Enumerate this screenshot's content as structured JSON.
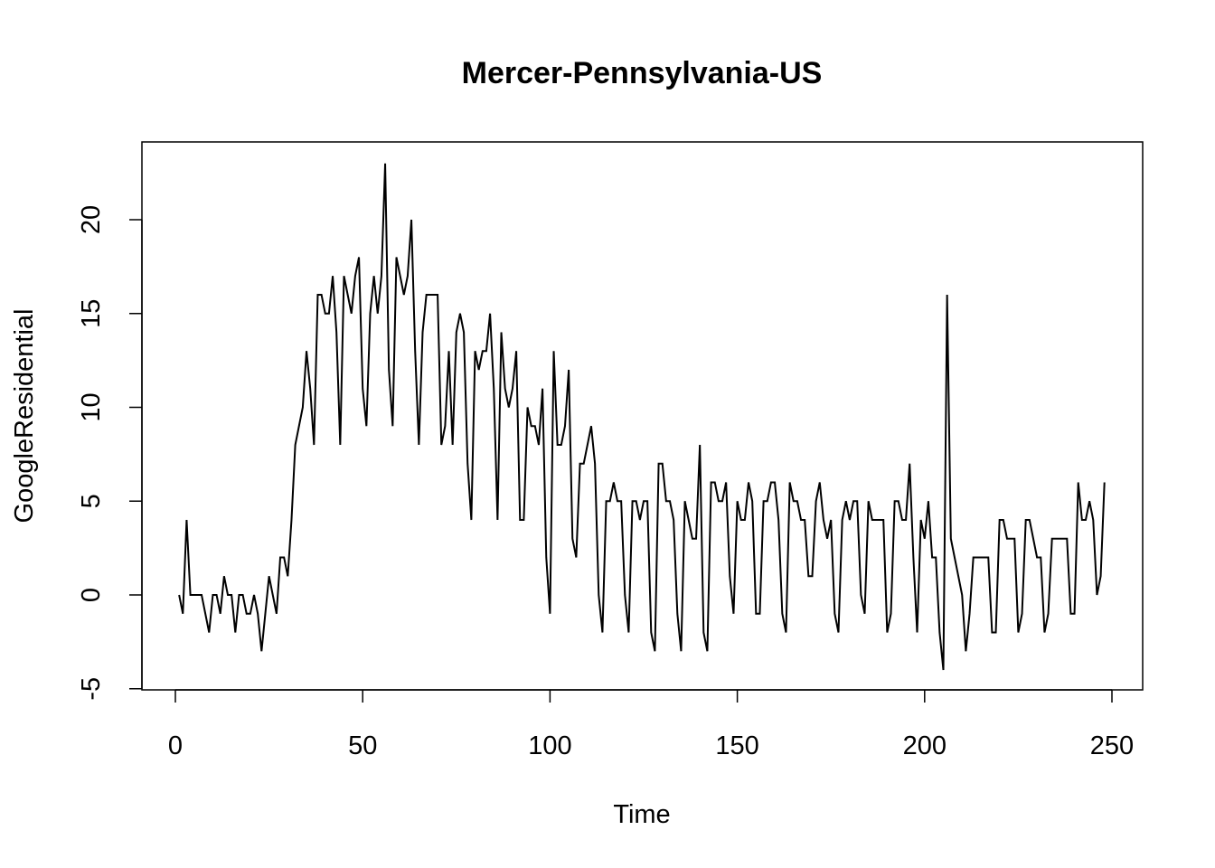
{
  "chart_data": {
    "type": "line",
    "title": "Mercer-Pennsylvania-US",
    "xlabel": "Time",
    "ylabel": "GoogleResidential",
    "xlim": [
      1,
      248
    ],
    "ylim": [
      -4,
      23
    ],
    "x_ticks": [
      0,
      50,
      100,
      150,
      200,
      250
    ],
    "y_ticks": [
      -5,
      0,
      5,
      10,
      15,
      20
    ],
    "grid": false,
    "legend": "none",
    "line_color": "#000000",
    "series": [
      {
        "x_start": 1,
        "values": [
          0,
          -1,
          4,
          0,
          0,
          0,
          0,
          -1,
          -2,
          0,
          0,
          -1,
          1,
          0,
          0,
          -2,
          0,
          0,
          -1,
          -1,
          0,
          -1,
          -3,
          -1,
          1,
          0,
          -1,
          2,
          2,
          1,
          4,
          8,
          9,
          10,
          13,
          11,
          8,
          16,
          16,
          15,
          15,
          17,
          14,
          8,
          17,
          16,
          15,
          17,
          18,
          11,
          9,
          15,
          17,
          15,
          17,
          23,
          12,
          9,
          18,
          17,
          16,
          17,
          20,
          13,
          8,
          14,
          16,
          16,
          16,
          16,
          8,
          9,
          13,
          8,
          14,
          15,
          14,
          7,
          4,
          13,
          12,
          13,
          13,
          15,
          11,
          4,
          14,
          11,
          10,
          11,
          13,
          4,
          4,
          10,
          9,
          9,
          8,
          11,
          2,
          -1,
          13,
          8,
          8,
          9,
          12,
          3,
          2,
          7,
          7,
          8,
          9,
          7,
          0,
          -2,
          5,
          5,
          6,
          5,
          5,
          0,
          -2,
          5,
          5,
          4,
          5,
          5,
          -2,
          -3,
          7,
          7,
          5,
          5,
          4,
          -1,
          -3,
          5,
          4,
          3,
          3,
          8,
          -2,
          -3,
          6,
          6,
          5,
          5,
          6,
          1,
          -1,
          5,
          4,
          4,
          6,
          5,
          -1,
          -1,
          5,
          5,
          6,
          6,
          4,
          -1,
          -2,
          6,
          5,
          5,
          4,
          4,
          1,
          1,
          5,
          6,
          4,
          3,
          4,
          -1,
          -2,
          4,
          5,
          4,
          5,
          5,
          0,
          -1,
          5,
          4,
          4,
          4,
          4,
          -2,
          -1,
          5,
          5,
          4,
          4,
          7,
          2,
          -2,
          4,
          3,
          5,
          2,
          2,
          -2,
          -4,
          16,
          3,
          2,
          1,
          0,
          -3,
          -1,
          2,
          2,
          2,
          2,
          2,
          -2,
          -2,
          4,
          4,
          3,
          3,
          3,
          -2,
          -1,
          4,
          4,
          3,
          2,
          2,
          -2,
          -1,
          3,
          3,
          3,
          3,
          3,
          -1,
          -1,
          6,
          4,
          4,
          5,
          4,
          0,
          1,
          6
        ]
      }
    ]
  }
}
